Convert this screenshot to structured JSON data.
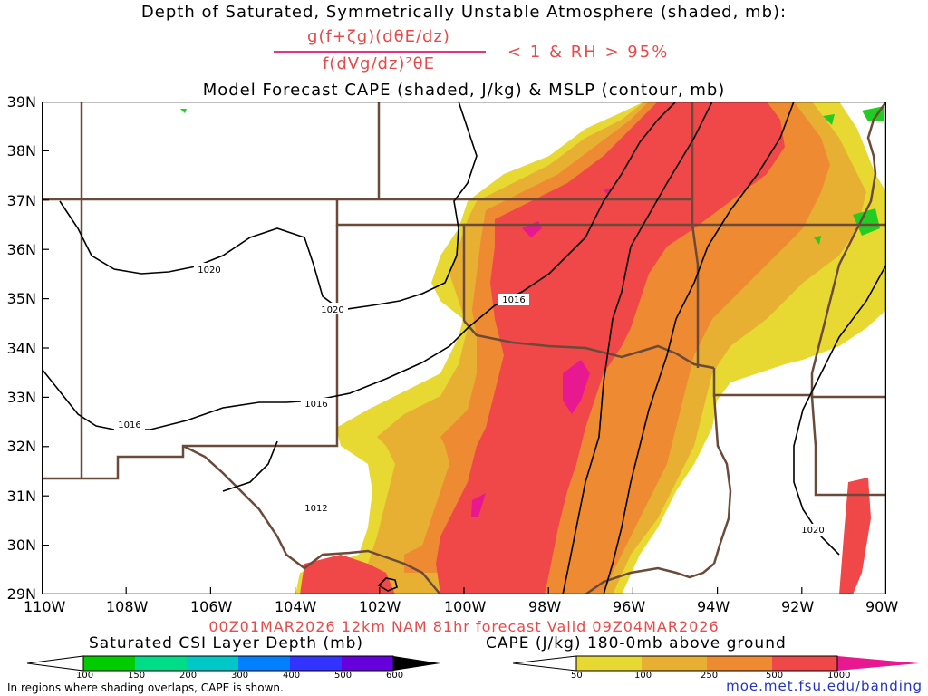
{
  "titles": {
    "line1": "Depth of Saturated, Symmetrically Unstable Atmosphere (shaded, mb):",
    "numerator": "g(f+ζg)(dθE/dz)",
    "denominator": "f(dVg/dz)²θE",
    "condition": "< 1 & RH > 95%",
    "line3": "Model Forecast CAPE (shaded, J/kg) & MSLP (contour, mb)"
  },
  "axes": {
    "lat_labels": [
      "39N",
      "38N",
      "37N",
      "36N",
      "35N",
      "34N",
      "33N",
      "32N",
      "31N",
      "30N",
      "29N"
    ],
    "lon_labels": [
      "110W",
      "108W",
      "106W",
      "104W",
      "102W",
      "100W",
      "98W",
      "96W",
      "94W",
      "92W",
      "90W"
    ]
  },
  "isobars": {
    "labels": [
      "1020",
      "1020",
      "1016",
      "1016",
      "1016",
      "1012",
      "1020"
    ]
  },
  "valid_line": "00Z01MAR2026 12km NAM 81hr forecast Valid 09Z04MAR2026",
  "colorbars": {
    "csi": {
      "title": "Saturated CSI Layer Depth (mb)",
      "ticks": [
        "100",
        "150",
        "200",
        "300",
        "400",
        "500",
        "600"
      ],
      "colors": [
        "#00cc00",
        "#00dd88",
        "#00c8c8",
        "#0080ff",
        "#3333ff",
        "#6600dd",
        "#000000"
      ]
    },
    "cape": {
      "title": "CAPE (J/kg) 180-0mb above ground",
      "ticks": [
        "50",
        "100",
        "250",
        "500",
        "1000"
      ],
      "colors": [
        "#e8d832",
        "#e8b032",
        "#ed8a32",
        "#f04848",
        "#e81890"
      ]
    }
  },
  "note": "In regions where shading overlaps, CAPE is shown.",
  "url": "moe.met.fsu.edu/banding",
  "colors": {
    "border": "#6b4a3a",
    "cape_yellow": "#e8d832",
    "cape_lorange": "#e8b032",
    "cape_orange": "#ed8a32",
    "cape_red": "#f04848",
    "cape_magenta": "#e81890",
    "csi_green": "#22cc22"
  }
}
